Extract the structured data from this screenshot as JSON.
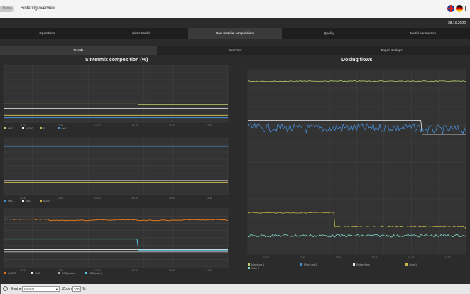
{
  "header": {
    "home_label": "Home",
    "title": "Sintering overview",
    "date": "28.10.2022"
  },
  "tabs": [
    {
      "label": "Operations"
    },
    {
      "label": "Sinter Model"
    },
    {
      "label": "Raw material compositions"
    },
    {
      "label": "Quality"
    },
    {
      "label": "Model parameters"
    }
  ],
  "subtabs": [
    {
      "label": "Trends"
    },
    {
      "label": "Overview"
    },
    {
      "label": "Expert settings"
    }
  ],
  "left_panel": {
    "title": "Sintermix composition (%)"
  },
  "right_panel": {
    "title": "Dosing flows"
  },
  "statusbar": {
    "engine_label": "Engine",
    "engine_value": "normal",
    "zoom_label": "Zoom",
    "zoom_value": "100",
    "zoom_unit": "%"
  },
  "colors": {
    "green": "#b5d36a",
    "white": "#eeeeee",
    "blue": "#4a90d9",
    "teal": "#7fd6c8",
    "orange": "#e0781e",
    "yellow": "#c8b84a",
    "cyan": "#5ac8e8",
    "grey": "#aaaaaa"
  },
  "chart_data": [
    {
      "type": "line",
      "x": [
        "11:00",
        "11:30",
        "12:00",
        "12:30",
        "13:00",
        "13:30"
      ],
      "series": [
        {
          "name": "SiO2",
          "color": "green",
          "values": [
            3.2,
            3.2,
            3.2,
            3.1,
            3.1,
            3.1
          ]
        },
        {
          "name": "Fe2O3",
          "color": "white",
          "values": [
            2.4,
            2.4,
            2.4,
            2.4,
            2.4,
            2.4
          ]
        },
        {
          "name": "Si",
          "color": "yellow",
          "values": [
            1.2,
            1.2,
            1.2,
            1.2,
            1.2,
            1.2
          ]
        },
        {
          "name": "CaO",
          "color": "blue",
          "values": [
            0.8,
            0.8,
            0.8,
            0.8,
            0.8,
            0.8
          ]
        }
      ]
    },
    {
      "type": "line",
      "x": [
        "11:00",
        "11:30",
        "12:00",
        "12:30",
        "13:00",
        "13:30"
      ],
      "series": [
        {
          "name": "MnO",
          "color": "blue",
          "values": [
            8.5,
            8.5,
            8.5,
            8.5,
            8.5,
            8.5
          ]
        },
        {
          "name": "MgO",
          "color": "white",
          "values": [
            2.5,
            2.5,
            2.5,
            2.5,
            2.5,
            2.5
          ]
        },
        {
          "name": "Al2O3",
          "color": "yellow",
          "values": [
            2.2,
            2.2,
            2.2,
            2.2,
            2.2,
            2.2
          ]
        }
      ]
    },
    {
      "type": "line",
      "x": [
        "11:00",
        "11:30",
        "12:00",
        "12:30",
        "13:00",
        "13:30"
      ],
      "series": [
        {
          "name": "CaCO3",
          "color": "orange",
          "values": [
            8.2,
            8.0,
            8.1,
            8.0,
            8.1,
            8.0
          ]
        },
        {
          "name": "CaO",
          "color": "white",
          "values": [
            3.0,
            3.0,
            3.0,
            3.0,
            3.0,
            3.0
          ]
        },
        {
          "name": "CO2 (mass)",
          "color": "grey",
          "values": [
            2.6,
            2.6,
            2.6,
            2.6,
            2.6,
            2.6
          ]
        },
        {
          "name": "H2O (calc.)",
          "color": "cyan",
          "values": [
            4.8,
            4.8,
            4.8,
            2.9,
            2.9,
            2.9
          ]
        }
      ]
    },
    {
      "type": "line",
      "x": [
        "11:00",
        "11:30",
        "12:00",
        "12:30",
        "13:00",
        "13:30"
      ],
      "series": [
        {
          "name": "Mixed ore 1",
          "color": "green",
          "values": [
            187.5,
            187.5,
            187.5,
            187.5,
            187.5,
            187.5
          ]
        },
        {
          "name": "Mixed ore 2",
          "color": "blue",
          "values": [
            137,
            136,
            137,
            137,
            135,
            136
          ]
        },
        {
          "name": "Return fines",
          "color": "white",
          "values": [
            145,
            145,
            145,
            145,
            130,
            130
          ]
        },
        {
          "name": "Coke 1",
          "color": "yellow",
          "values": [
            45,
            45,
            30,
            30,
            30,
            28
          ]
        },
        {
          "name": "Coke 2",
          "color": "teal",
          "values": [
            20,
            20,
            20,
            20,
            20,
            20
          ]
        }
      ]
    }
  ]
}
